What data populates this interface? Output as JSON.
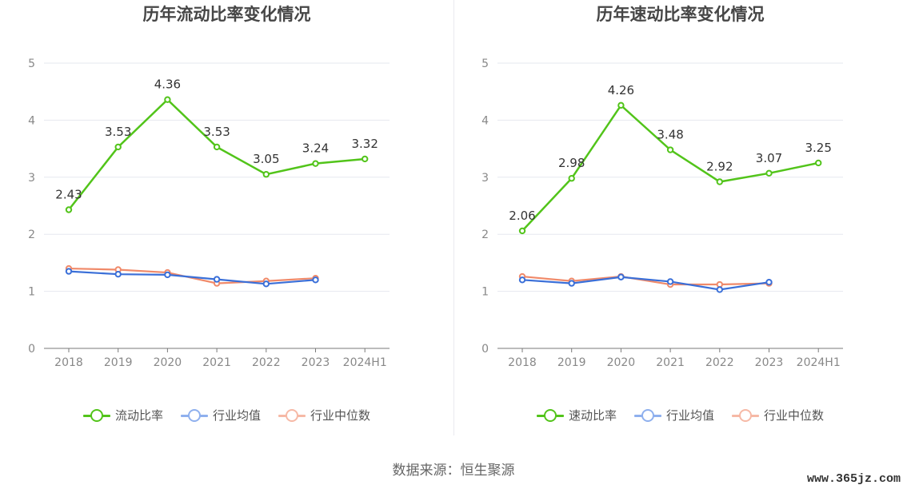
{
  "source_label": "数据来源：恒生聚源",
  "watermark": "www.365jz.com",
  "chart_data": [
    {
      "type": "line",
      "title": "历年流动比率变化情况",
      "categories": [
        "2018",
        "2019",
        "2020",
        "2021",
        "2022",
        "2023",
        "2024H1"
      ],
      "ylim": [
        0,
        5
      ],
      "yticks": [
        "0",
        "1",
        "2",
        "3",
        "4",
        "5"
      ],
      "grid": true,
      "legend_position": "bottom",
      "series": [
        {
          "name": "流动比率",
          "color": "#52c41a",
          "labels": true,
          "values": [
            2.43,
            3.53,
            4.36,
            3.53,
            3.05,
            3.24,
            3.32
          ]
        },
        {
          "name": "行业均值",
          "color": "#3a6fd8",
          "legend_color": "#8fb0ee",
          "labels": false,
          "values": [
            1.35,
            1.3,
            1.29,
            1.21,
            1.13,
            1.2,
            null
          ]
        },
        {
          "name": "行业中位数",
          "color": "#f08a6a",
          "legend_color": "#f6b9a6",
          "labels": false,
          "values": [
            1.4,
            1.38,
            1.33,
            1.14,
            1.18,
            1.23,
            null
          ]
        }
      ]
    },
    {
      "type": "line",
      "title": "历年速动比率变化情况",
      "categories": [
        "2018",
        "2019",
        "2020",
        "2021",
        "2022",
        "2023",
        "2024H1"
      ],
      "ylim": [
        0,
        5
      ],
      "yticks": [
        "0",
        "1",
        "2",
        "3",
        "4",
        "5"
      ],
      "grid": true,
      "legend_position": "bottom",
      "series": [
        {
          "name": "速动比率",
          "color": "#52c41a",
          "labels": true,
          "values": [
            2.06,
            2.98,
            4.26,
            3.48,
            2.92,
            3.07,
            3.25
          ]
        },
        {
          "name": "行业均值",
          "color": "#3a6fd8",
          "legend_color": "#8fb0ee",
          "labels": false,
          "values": [
            1.2,
            1.14,
            1.25,
            1.17,
            1.03,
            1.16,
            null
          ]
        },
        {
          "name": "行业中位数",
          "color": "#f08a6a",
          "legend_color": "#f6b9a6",
          "labels": false,
          "values": [
            1.26,
            1.18,
            1.26,
            1.12,
            1.12,
            1.14,
            null
          ]
        }
      ]
    }
  ]
}
